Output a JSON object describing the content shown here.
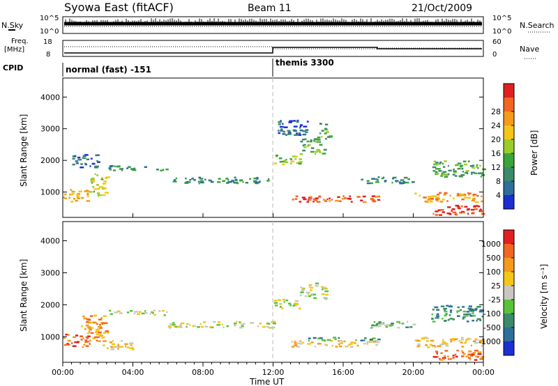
{
  "header": {
    "station": "Syowa East (fitACF)",
    "beam": "Beam 11",
    "date": "21/Oct/2009"
  },
  "noise_panel": {
    "left_label": "N.Sky",
    "right_label": "N.Search",
    "left_ticks": [
      "10^5",
      "10^0"
    ],
    "right_ticks": [
      "10^5",
      "10^0"
    ]
  },
  "freq_panel": {
    "left_label_1": "Freq.",
    "left_label_2": "[MHz]",
    "left_ticks": [
      "18",
      "8"
    ],
    "right_label": "Nave",
    "right_ticks": [
      "60",
      "0"
    ]
  },
  "cpid": {
    "label": "CPID",
    "segments": [
      {
        "name": "normal (fast) -151",
        "start_hour": 0,
        "end_hour": 12
      },
      {
        "name": "themis 3300",
        "start_hour": 12,
        "end_hour": 24
      }
    ]
  },
  "power_panel": {
    "ylabel": "Slant Range [km]",
    "yticks": [
      "1000",
      "2000",
      "3000",
      "4000"
    ],
    "colorbar_label": "Power [dB]",
    "colorbar_ticks": [
      "4",
      "8",
      "12",
      "16",
      "20",
      "24",
      "28"
    ],
    "colors": [
      "#1e2ed2",
      "#2e6e9a",
      "#3b8a6a",
      "#3aa43a",
      "#9acc2a",
      "#f5c518",
      "#f59a1a",
      "#f26522",
      "#e02020"
    ]
  },
  "velocity_panel": {
    "ylabel": "Slant Range [km]",
    "yticks": [
      "1000",
      "2000",
      "3000",
      "4000"
    ],
    "colorbar_label": "Velocity [m s⁻¹]",
    "colorbar_ticks": [
      "1000",
      "500",
      "100",
      "25",
      "-25",
      "-100",
      "-500",
      "-1000"
    ],
    "colors": [
      "#1e2ed2",
      "#2e6e9a",
      "#3b8a6a",
      "#59c23a",
      "#c8c8c0",
      "#f5c518",
      "#f59a1a",
      "#f26522",
      "#e02020"
    ]
  },
  "xaxis": {
    "label": "Time UT",
    "ticks": [
      "00:00",
      "04:00",
      "08:00",
      "12:00",
      "16:00",
      "20:00",
      "00:00"
    ]
  },
  "chart_data": {
    "type": "heatmap",
    "x_range_hours": [
      0,
      24
    ],
    "y_range_km": [
      200,
      4600
    ],
    "power_echo_regions": [
      {
        "t0": 0.0,
        "t1": 1.5,
        "r0": 700,
        "r1": 1100,
        "level": 5
      },
      {
        "t0": 0.5,
        "t1": 2.0,
        "r0": 1800,
        "r1": 2200,
        "level": 1
      },
      {
        "t0": 1.5,
        "t1": 2.5,
        "r0": 900,
        "r1": 1600,
        "level": 4
      },
      {
        "t0": 2.5,
        "t1": 6.0,
        "r0": 1700,
        "r1": 1850,
        "level": 2
      },
      {
        "t0": 6.0,
        "t1": 12.0,
        "r0": 1300,
        "r1": 1500,
        "level": 2
      },
      {
        "t0": 12.0,
        "t1": 13.5,
        "r0": 1900,
        "r1": 2200,
        "level": 4
      },
      {
        "t0": 13.5,
        "t1": 15.0,
        "r0": 2200,
        "r1": 2700,
        "level": 3
      },
      {
        "t0": 14.5,
        "t1": 15.2,
        "r0": 2700,
        "r1": 3200,
        "level": 3
      },
      {
        "t0": 12.2,
        "t1": 14.0,
        "r0": 2800,
        "r1": 3300,
        "level": 1
      },
      {
        "t0": 13.0,
        "t1": 18.0,
        "r0": 700,
        "r1": 900,
        "level": 7
      },
      {
        "t0": 17.0,
        "t1": 20.0,
        "r0": 1300,
        "r1": 1500,
        "level": 2
      },
      {
        "t0": 20.0,
        "t1": 24.0,
        "r0": 700,
        "r1": 1000,
        "level": 6
      },
      {
        "t0": 21.0,
        "t1": 24.0,
        "r0": 300,
        "r1": 600,
        "level": 8
      },
      {
        "t0": 21.0,
        "t1": 24.0,
        "r0": 1500,
        "r1": 2000,
        "level": 3
      }
    ],
    "velocity_echo_regions": [
      {
        "t0": 0.0,
        "t1": 1.5,
        "r0": 700,
        "r1": 1100,
        "level": 7
      },
      {
        "t0": 1.0,
        "t1": 2.5,
        "r0": 900,
        "r1": 1700,
        "level": 6
      },
      {
        "t0": 2.0,
        "t1": 4.0,
        "r0": 600,
        "r1": 900,
        "level": 5
      },
      {
        "t0": 2.5,
        "t1": 6.0,
        "r0": 1700,
        "r1": 1850,
        "level": 4
      },
      {
        "t0": 6.0,
        "t1": 12.0,
        "r0": 1300,
        "r1": 1500,
        "level": 4
      },
      {
        "t0": 12.0,
        "t1": 13.5,
        "r0": 1900,
        "r1": 2200,
        "level": 4
      },
      {
        "t0": 13.5,
        "t1": 15.0,
        "r0": 2200,
        "r1": 2700,
        "level": 4
      },
      {
        "t0": 13.0,
        "t1": 18.0,
        "r0": 700,
        "r1": 900,
        "level": 5
      },
      {
        "t0": 14.0,
        "t1": 18.0,
        "r0": 900,
        "r1": 1000,
        "level": 2
      },
      {
        "t0": 17.0,
        "t1": 20.0,
        "r0": 1300,
        "r1": 1500,
        "level": 3
      },
      {
        "t0": 20.0,
        "t1": 24.0,
        "r0": 700,
        "r1": 1000,
        "level": 5
      },
      {
        "t0": 21.0,
        "t1": 24.0,
        "r0": 300,
        "r1": 600,
        "level": 7
      },
      {
        "t0": 21.0,
        "t1": 24.0,
        "r0": 1500,
        "r1": 2000,
        "level": 2
      }
    ]
  }
}
